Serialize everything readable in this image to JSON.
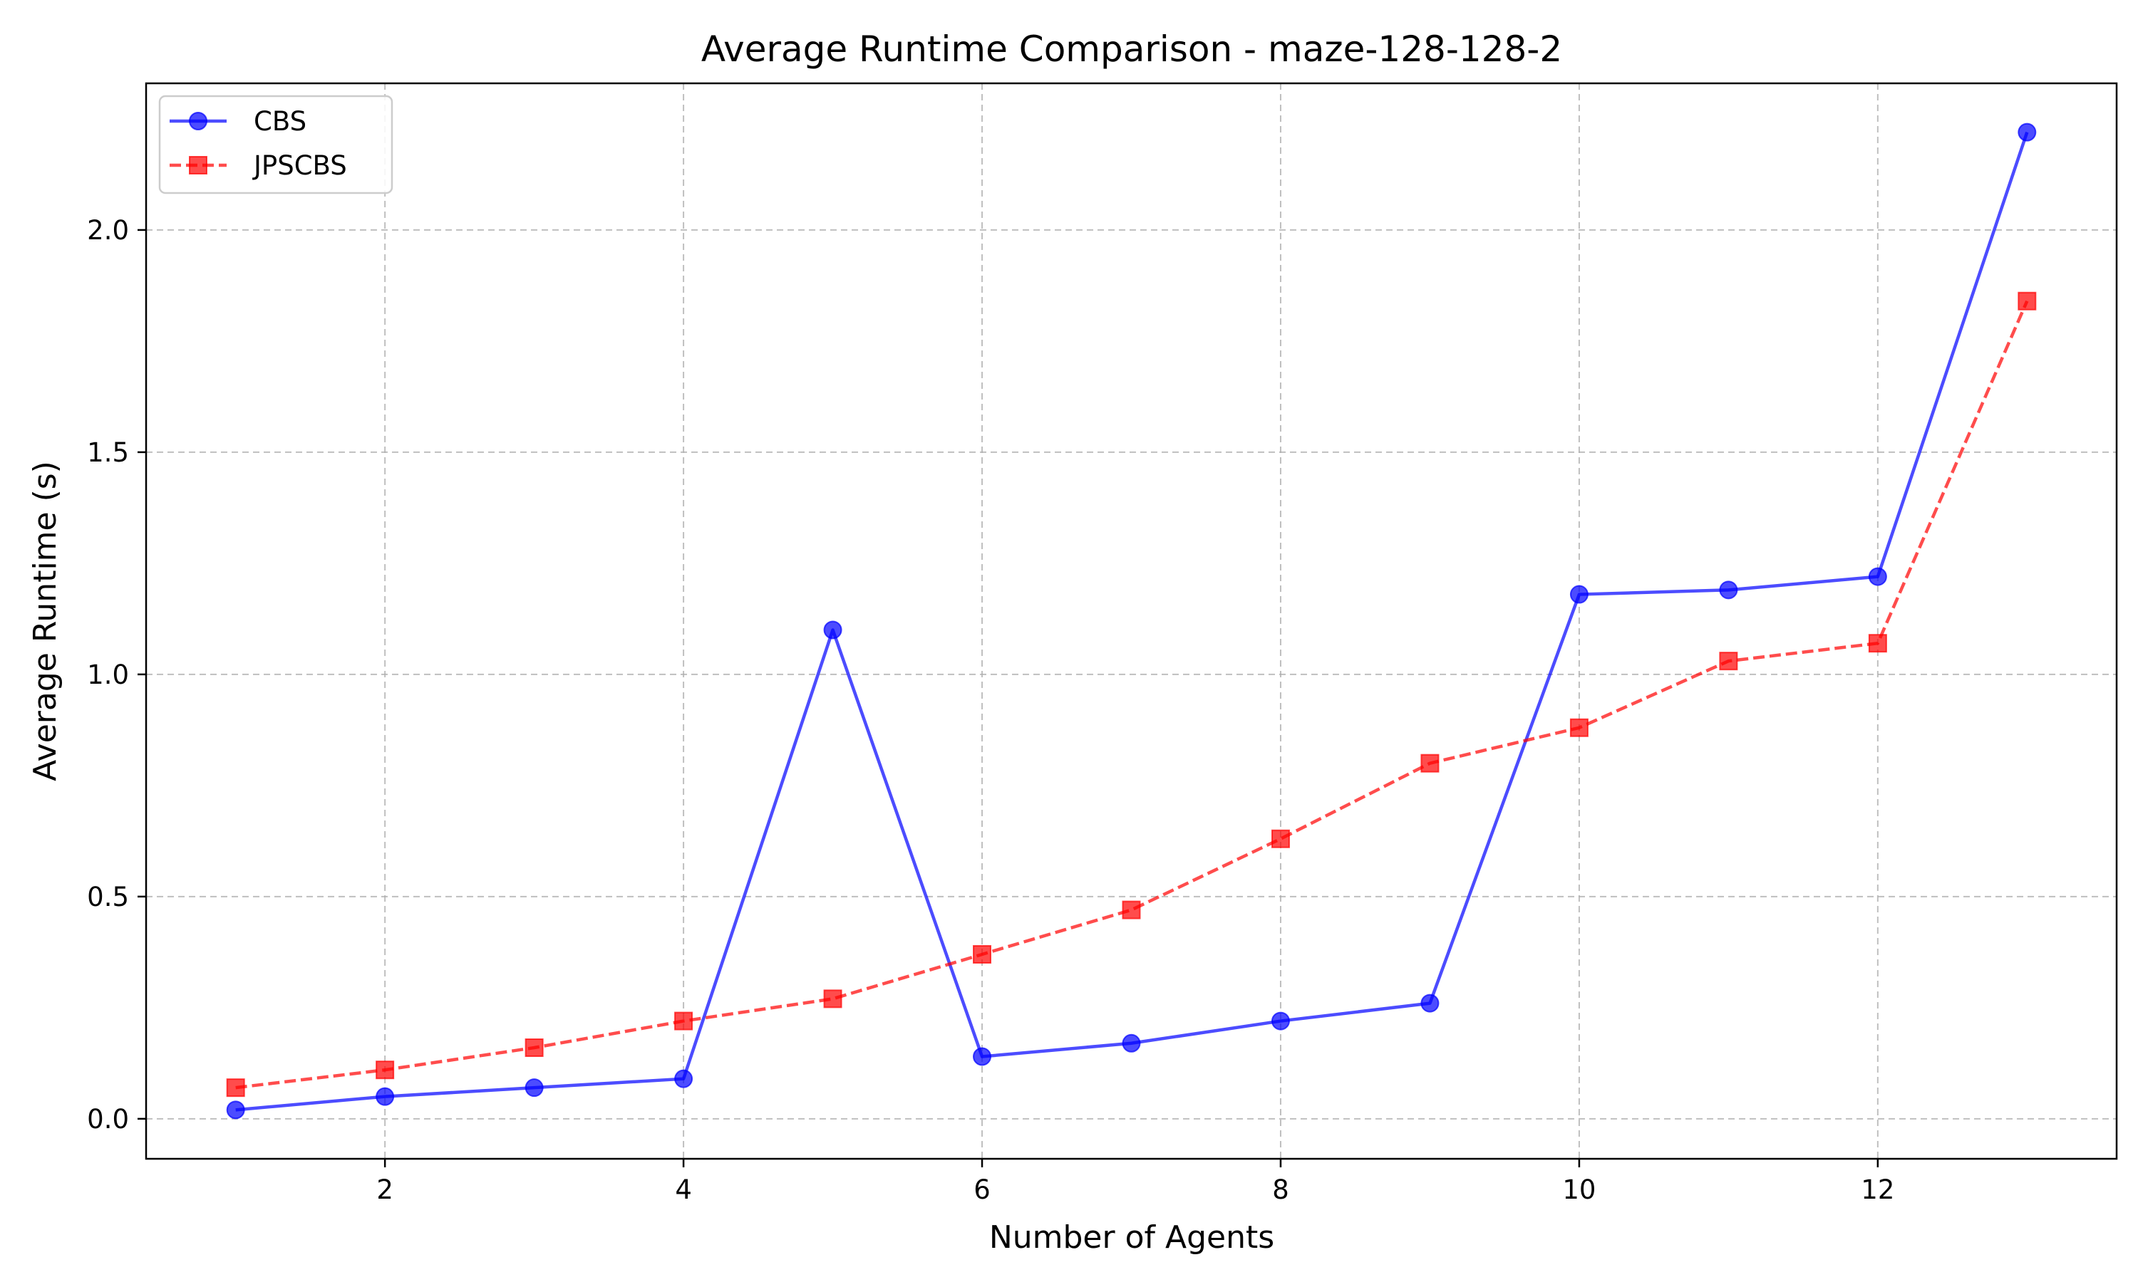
{
  "chart_data": {
    "type": "line",
    "title": "Average Runtime Comparison - maze-128-128-2",
    "xlabel": "Number of Agents",
    "ylabel": "Average Runtime (s)",
    "x": [
      1,
      2,
      3,
      4,
      5,
      6,
      7,
      8,
      9,
      10,
      11,
      12,
      13
    ],
    "xlim": [
      0.4,
      13.6
    ],
    "ylim": [
      -0.09,
      2.33
    ],
    "xticks": [
      2,
      4,
      6,
      8,
      10,
      12
    ],
    "yticks": [
      0.0,
      0.5,
      1.0,
      1.5,
      2.0
    ],
    "xtick_labels": [
      "2",
      "4",
      "6",
      "8",
      "10",
      "12"
    ],
    "ytick_labels": [
      "0.0",
      "0.5",
      "1.0",
      "1.5",
      "2.0"
    ],
    "grid": true,
    "legend_position": "top-left",
    "series": [
      {
        "name": "CBS",
        "color": "#0000ff",
        "line_style": "solid",
        "marker": "circle",
        "values": [
          0.02,
          0.05,
          0.07,
          0.09,
          1.1,
          0.14,
          0.17,
          0.22,
          0.26,
          1.18,
          1.19,
          1.22,
          2.22
        ]
      },
      {
        "name": "JPSCBS",
        "color": "#ff0000",
        "line_style": "dashed",
        "marker": "square",
        "values": [
          0.07,
          0.11,
          0.16,
          0.22,
          0.27,
          0.37,
          0.47,
          0.63,
          0.8,
          0.88,
          1.03,
          1.07,
          1.84
        ]
      }
    ]
  }
}
